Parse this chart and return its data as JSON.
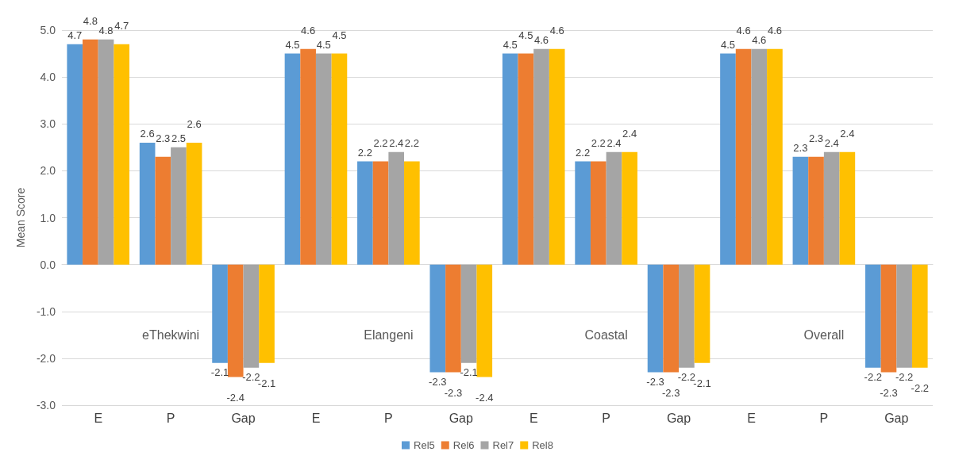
{
  "chart_data": {
    "type": "bar",
    "ylabel": "Mean Score",
    "categories": [
      "E",
      "P",
      "Gap",
      "E",
      "P",
      "Gap",
      "E",
      "P",
      "Gap",
      "E",
      "P",
      "Gap"
    ],
    "annotations": [
      "eThekwini",
      "Elangeni",
      "Coastal",
      "Overall"
    ],
    "series": [
      {
        "name": "Rel5",
        "color": "#5b9bd5",
        "values": [
          4.7,
          2.6,
          -2.1,
          4.5,
          2.2,
          -2.3,
          4.5,
          2.2,
          -2.3,
          4.5,
          2.3,
          -2.2
        ]
      },
      {
        "name": "Rel6",
        "color": "#ed7d31",
        "values": [
          4.8,
          2.3,
          -2.4,
          4.6,
          2.2,
          -2.3,
          4.5,
          2.2,
          -2.3,
          4.6,
          2.3,
          -2.3
        ]
      },
      {
        "name": "Rel7",
        "color": "#a5a5a5",
        "values": [
          4.8,
          2.5,
          -2.2,
          4.5,
          2.4,
          -2.1,
          4.6,
          2.4,
          -2.2,
          4.6,
          2.4,
          -2.2
        ]
      },
      {
        "name": "Rel8",
        "color": "#ffc000",
        "values": [
          4.7,
          2.6,
          -2.1,
          4.5,
          2.2,
          -2.4,
          4.6,
          2.4,
          -2.1,
          4.6,
          2.4,
          -2.2
        ]
      }
    ],
    "ylim": [
      -3,
      5
    ],
    "yticks": [
      {
        "value": -3,
        "label": "-3.0"
      },
      {
        "value": -2,
        "label": "-2.0"
      },
      {
        "value": -1,
        "label": "-1.0"
      },
      {
        "value": 0,
        "label": "0.0"
      },
      {
        "value": 1,
        "label": "1.0"
      },
      {
        "value": 2,
        "label": "2.0"
      },
      {
        "value": 3,
        "label": "3.0"
      },
      {
        "value": 4,
        "label": "4.0"
      },
      {
        "value": 5,
        "label": "5.0"
      }
    ],
    "grid": "y",
    "legend": "bottom",
    "data_labels": true
  }
}
